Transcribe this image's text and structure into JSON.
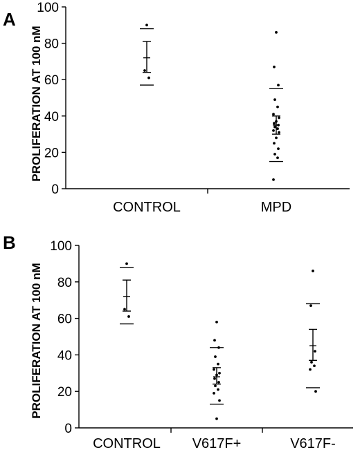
{
  "chart_data": [
    {
      "type": "scatter",
      "panel": "A",
      "title": "",
      "xlabel": "",
      "ylabel": "PROLIFERATION AT 100 nM",
      "ylim": [
        0,
        100
      ],
      "yticks": [
        0,
        20,
        40,
        60,
        80,
        100
      ],
      "categories": [
        "CONTROL",
        "MPD"
      ],
      "groups": [
        {
          "category": "CONTROL",
          "points": [
            90,
            65,
            61
          ],
          "mean": 72,
          "sem": [
            64,
            81
          ],
          "range": [
            57,
            88
          ]
        },
        {
          "category": "MPD",
          "points": [
            86,
            67,
            57,
            49,
            45,
            41,
            39,
            37,
            36,
            35,
            34,
            33,
            32,
            31,
            28,
            25,
            22,
            19,
            17,
            5
          ],
          "mean": 35,
          "sem": [
            30,
            40
          ],
          "range": [
            15,
            55
          ]
        }
      ],
      "grid": false
    },
    {
      "type": "scatter",
      "panel": "B",
      "title": "",
      "xlabel": "",
      "ylabel": "PROLIFERATION AT 100 nM",
      "ylim": [
        0,
        100
      ],
      "yticks": [
        0,
        20,
        40,
        60,
        80,
        100
      ],
      "categories": [
        "CONTROL",
        "V617F+",
        "V617F-"
      ],
      "groups": [
        {
          "category": "CONTROL",
          "points": [
            90,
            65,
            61
          ],
          "mean": 72,
          "sem": [
            64,
            81
          ],
          "range": [
            57,
            88
          ]
        },
        {
          "category": "V617F+",
          "points": [
            58,
            48,
            44,
            39,
            35,
            32,
            30,
            29,
            27,
            25,
            23,
            21,
            19,
            15,
            5
          ],
          "mean": 28,
          "sem": [
            24,
            33
          ],
          "range": [
            13,
            44
          ]
        },
        {
          "category": "V617F-",
          "points": [
            86,
            67,
            42,
            36,
            34,
            32,
            20
          ],
          "mean": 45,
          "sem": [
            37,
            54
          ],
          "range": [
            22,
            68
          ]
        }
      ],
      "grid": false
    }
  ]
}
